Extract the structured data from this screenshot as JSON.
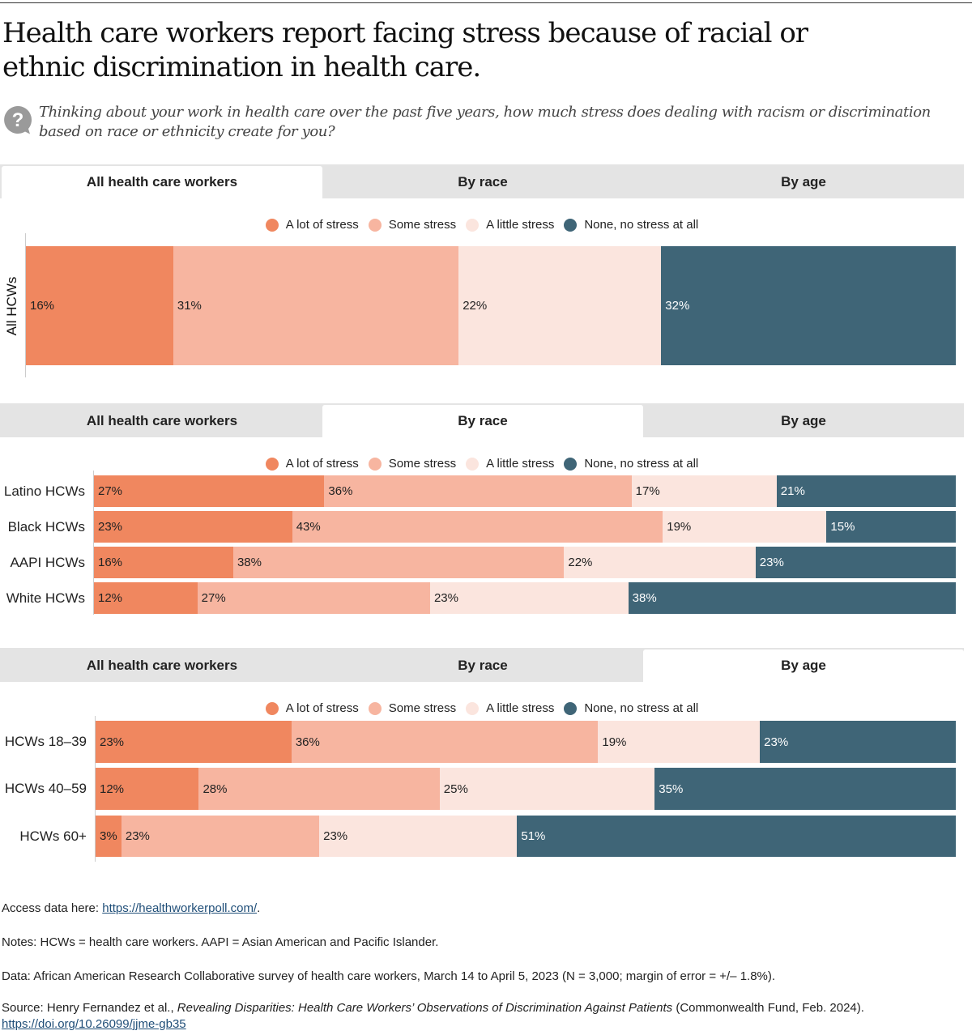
{
  "title": "Health care workers report facing stress because of racial or ethnic discrimination in health care.",
  "question": "Thinking about your work in health care over the past five years, how much stress does dealing with racism or discrimination based on race or ethnicity create for you?",
  "question_icon": "question-bubble-icon",
  "tabs": [
    "All health care workers",
    "By race",
    "By age"
  ],
  "legend": [
    "A lot of stress",
    "Some stress",
    "A little stress",
    "None, no stress at all"
  ],
  "colors": [
    "#f0875f",
    "#f7b5a0",
    "#fbe5de",
    "#3f6577"
  ],
  "chart_data": [
    {
      "type": "bar",
      "orientation": "horizontal",
      "stacked": true,
      "active_tab": 0,
      "ylabel": "",
      "categories": [
        "All HCWs"
      ],
      "series": [
        {
          "name": "A lot of stress",
          "values": [
            16
          ]
        },
        {
          "name": "Some stress",
          "values": [
            31
          ]
        },
        {
          "name": "A little stress",
          "values": [
            22
          ]
        },
        {
          "name": "None, no stress at all",
          "values": [
            32
          ]
        }
      ],
      "labels": [
        [
          "16%",
          "31%",
          "22%",
          "32%"
        ]
      ],
      "legend_position": "top"
    },
    {
      "type": "bar",
      "orientation": "horizontal",
      "stacked": true,
      "active_tab": 1,
      "categories": [
        "Latino HCWs",
        "Black HCWs",
        "AAPI HCWs",
        "White HCWs"
      ],
      "series": [
        {
          "name": "A lot of stress",
          "values": [
            27,
            23,
            16,
            12
          ]
        },
        {
          "name": "Some stress",
          "values": [
            36,
            43,
            38,
            27
          ]
        },
        {
          "name": "A little stress",
          "values": [
            17,
            19,
            22,
            23
          ]
        },
        {
          "name": "None, no stress at all",
          "values": [
            21,
            15,
            23,
            38
          ]
        }
      ],
      "labels": [
        [
          "27%",
          "36%",
          "17%",
          "21%"
        ],
        [
          "23%",
          "43%",
          "19%",
          "15%"
        ],
        [
          "16%",
          "38%",
          "22%",
          "23%"
        ],
        [
          "12%",
          "27%",
          "23%",
          "38%"
        ]
      ],
      "legend_position": "top"
    },
    {
      "type": "bar",
      "orientation": "horizontal",
      "stacked": true,
      "active_tab": 2,
      "categories": [
        "HCWs 18–39",
        "HCWs 40–59",
        "HCWs 60+"
      ],
      "series": [
        {
          "name": "A lot of stress",
          "values": [
            23,
            12,
            3
          ]
        },
        {
          "name": "Some stress",
          "values": [
            36,
            28,
            23
          ]
        },
        {
          "name": "A little stress",
          "values": [
            19,
            25,
            23
          ]
        },
        {
          "name": "None, no stress at all",
          "values": [
            23,
            35,
            51
          ]
        }
      ],
      "labels": [
        [
          "23%",
          "36%",
          "19%",
          "23%"
        ],
        [
          "12%",
          "28%",
          "25%",
          "35%"
        ],
        [
          "3%",
          "23%",
          "23%",
          "51%"
        ]
      ],
      "legend_position": "top"
    }
  ],
  "footer": {
    "access_prefix": "Access data here: ",
    "access_link": "https://healthworkerpoll.com/",
    "access_suffix": ".",
    "notes": "Notes: HCWs = health care workers. AAPI = Asian American and Pacific Islander.",
    "data": "Data: African American Research Collaborative survey of health care workers, March 14 to April 5, 2023 (N = 3,000; margin of error = +/– 1.8%).",
    "source_prefix": "Source: Henry Fernandez et al., ",
    "source_title": "Revealing Disparities: Health Care Workers’ Observations of Discrimination Against Patients",
    "source_suffix": " (Commonwealth Fund, Feb. 2024).",
    "doi": "https://doi.org/10.26099/jjme-gb35"
  }
}
